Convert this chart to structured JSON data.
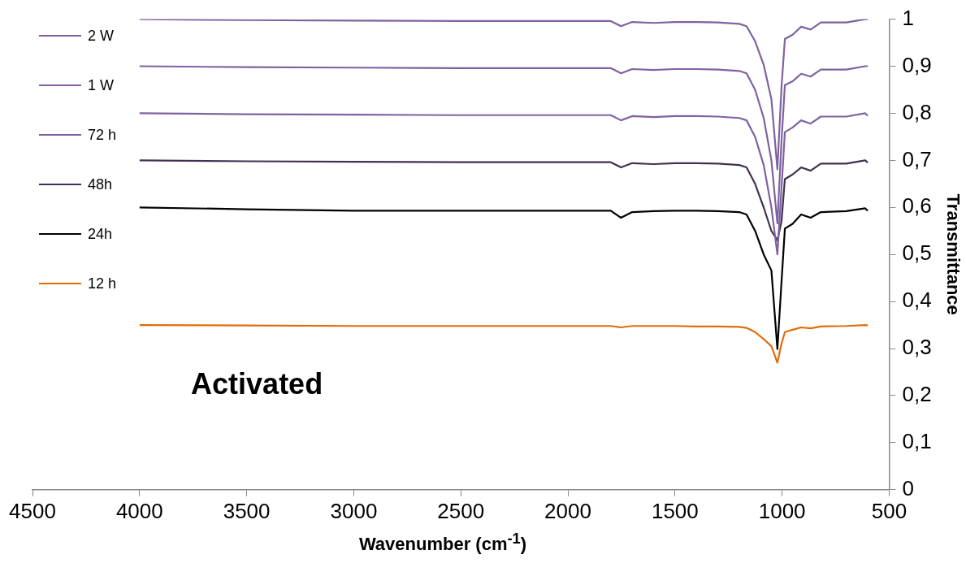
{
  "chart_data": {
    "type": "line",
    "xlabel": "Wavenumber (cm$^{-1}$)",
    "ylabel": "Transmittance",
    "annotations": [
      "Activated"
    ],
    "x": [
      4000,
      3500,
      3000,
      2500,
      2000,
      1800,
      1752,
      1700,
      1600,
      1500,
      1400,
      1300,
      1200,
      1166,
      1126,
      1086,
      1050,
      1022,
      1003,
      987,
      951,
      911,
      867,
      819,
      700,
      612,
      600
    ],
    "xlim": [
      4500,
      500
    ],
    "xticks": [
      4500,
      4000,
      3500,
      3000,
      2500,
      2000,
      1500,
      1000,
      500
    ],
    "ylim": [
      0,
      1
    ],
    "yticks": [
      0,
      {
        "value": 0.1,
        "label": "0,1"
      },
      {
        "value": 0.2,
        "label": "0,2"
      },
      {
        "value": 0.3,
        "label": "0,3"
      },
      {
        "value": 0.4,
        "label": "0,4"
      },
      {
        "value": 0.5,
        "label": "0,5"
      },
      {
        "value": 0.6,
        "label": "0,6"
      },
      {
        "value": 0.7,
        "label": "0,7"
      },
      {
        "value": 0.8,
        "label": "0,8"
      },
      {
        "value": 0.9,
        "label": "0,9"
      },
      1
    ],
    "grid": false,
    "legend": "top left",
    "marker": "none",
    "line_style": "solid",
    "series": [
      {
        "name": "2 W",
        "color": "#7e62a1",
        "values": [
          1.0,
          0.998,
          0.997,
          0.996,
          0.996,
          0.996,
          0.985,
          0.994,
          0.992,
          0.994,
          0.994,
          0.993,
          0.99,
          0.985,
          0.953,
          0.903,
          0.83,
          0.681,
          0.854,
          0.958,
          0.967,
          0.984,
          0.978,
          0.993,
          0.993,
          1.0,
          1.0
        ]
      },
      {
        "name": "1 W",
        "color": "#7e62a1",
        "values": [
          0.9,
          0.898,
          0.897,
          0.896,
          0.896,
          0.896,
          0.885,
          0.894,
          0.892,
          0.894,
          0.894,
          0.893,
          0.89,
          0.885,
          0.85,
          0.79,
          0.7,
          0.566,
          0.74,
          0.86,
          0.868,
          0.884,
          0.878,
          0.893,
          0.893,
          0.9,
          0.9
        ]
      },
      {
        "name": "72 h",
        "color": "#7e62a1",
        "values": [
          0.8,
          0.798,
          0.797,
          0.796,
          0.796,
          0.796,
          0.785,
          0.794,
          0.792,
          0.794,
          0.794,
          0.793,
          0.79,
          0.785,
          0.75,
          0.69,
          0.6,
          0.5,
          0.64,
          0.76,
          0.77,
          0.785,
          0.778,
          0.793,
          0.793,
          0.8,
          0.795
        ]
      },
      {
        "name": "48h",
        "color": "#403152",
        "values": [
          0.7,
          0.698,
          0.697,
          0.696,
          0.696,
          0.696,
          0.685,
          0.694,
          0.692,
          0.694,
          0.694,
          0.693,
          0.69,
          0.685,
          0.65,
          0.6,
          0.55,
          0.53,
          0.57,
          0.66,
          0.67,
          0.685,
          0.678,
          0.693,
          0.693,
          0.7,
          0.695
        ]
      },
      {
        "name": "24h",
        "color": "#000000",
        "values": [
          0.6,
          0.596,
          0.593,
          0.593,
          0.593,
          0.593,
          0.578,
          0.59,
          0.592,
          0.593,
          0.593,
          0.592,
          0.59,
          0.585,
          0.55,
          0.5,
          0.466,
          0.299,
          0.44,
          0.555,
          0.565,
          0.585,
          0.578,
          0.59,
          0.592,
          0.598,
          0.593
        ]
      },
      {
        "name": "12 h",
        "color": "#e46c0a",
        "values": [
          0.35,
          0.349,
          0.348,
          0.348,
          0.348,
          0.348,
          0.345,
          0.348,
          0.348,
          0.348,
          0.347,
          0.347,
          0.346,
          0.344,
          0.335,
          0.32,
          0.305,
          0.27,
          0.31,
          0.335,
          0.34,
          0.345,
          0.343,
          0.347,
          0.348,
          0.35,
          0.349
        ]
      }
    ]
  }
}
